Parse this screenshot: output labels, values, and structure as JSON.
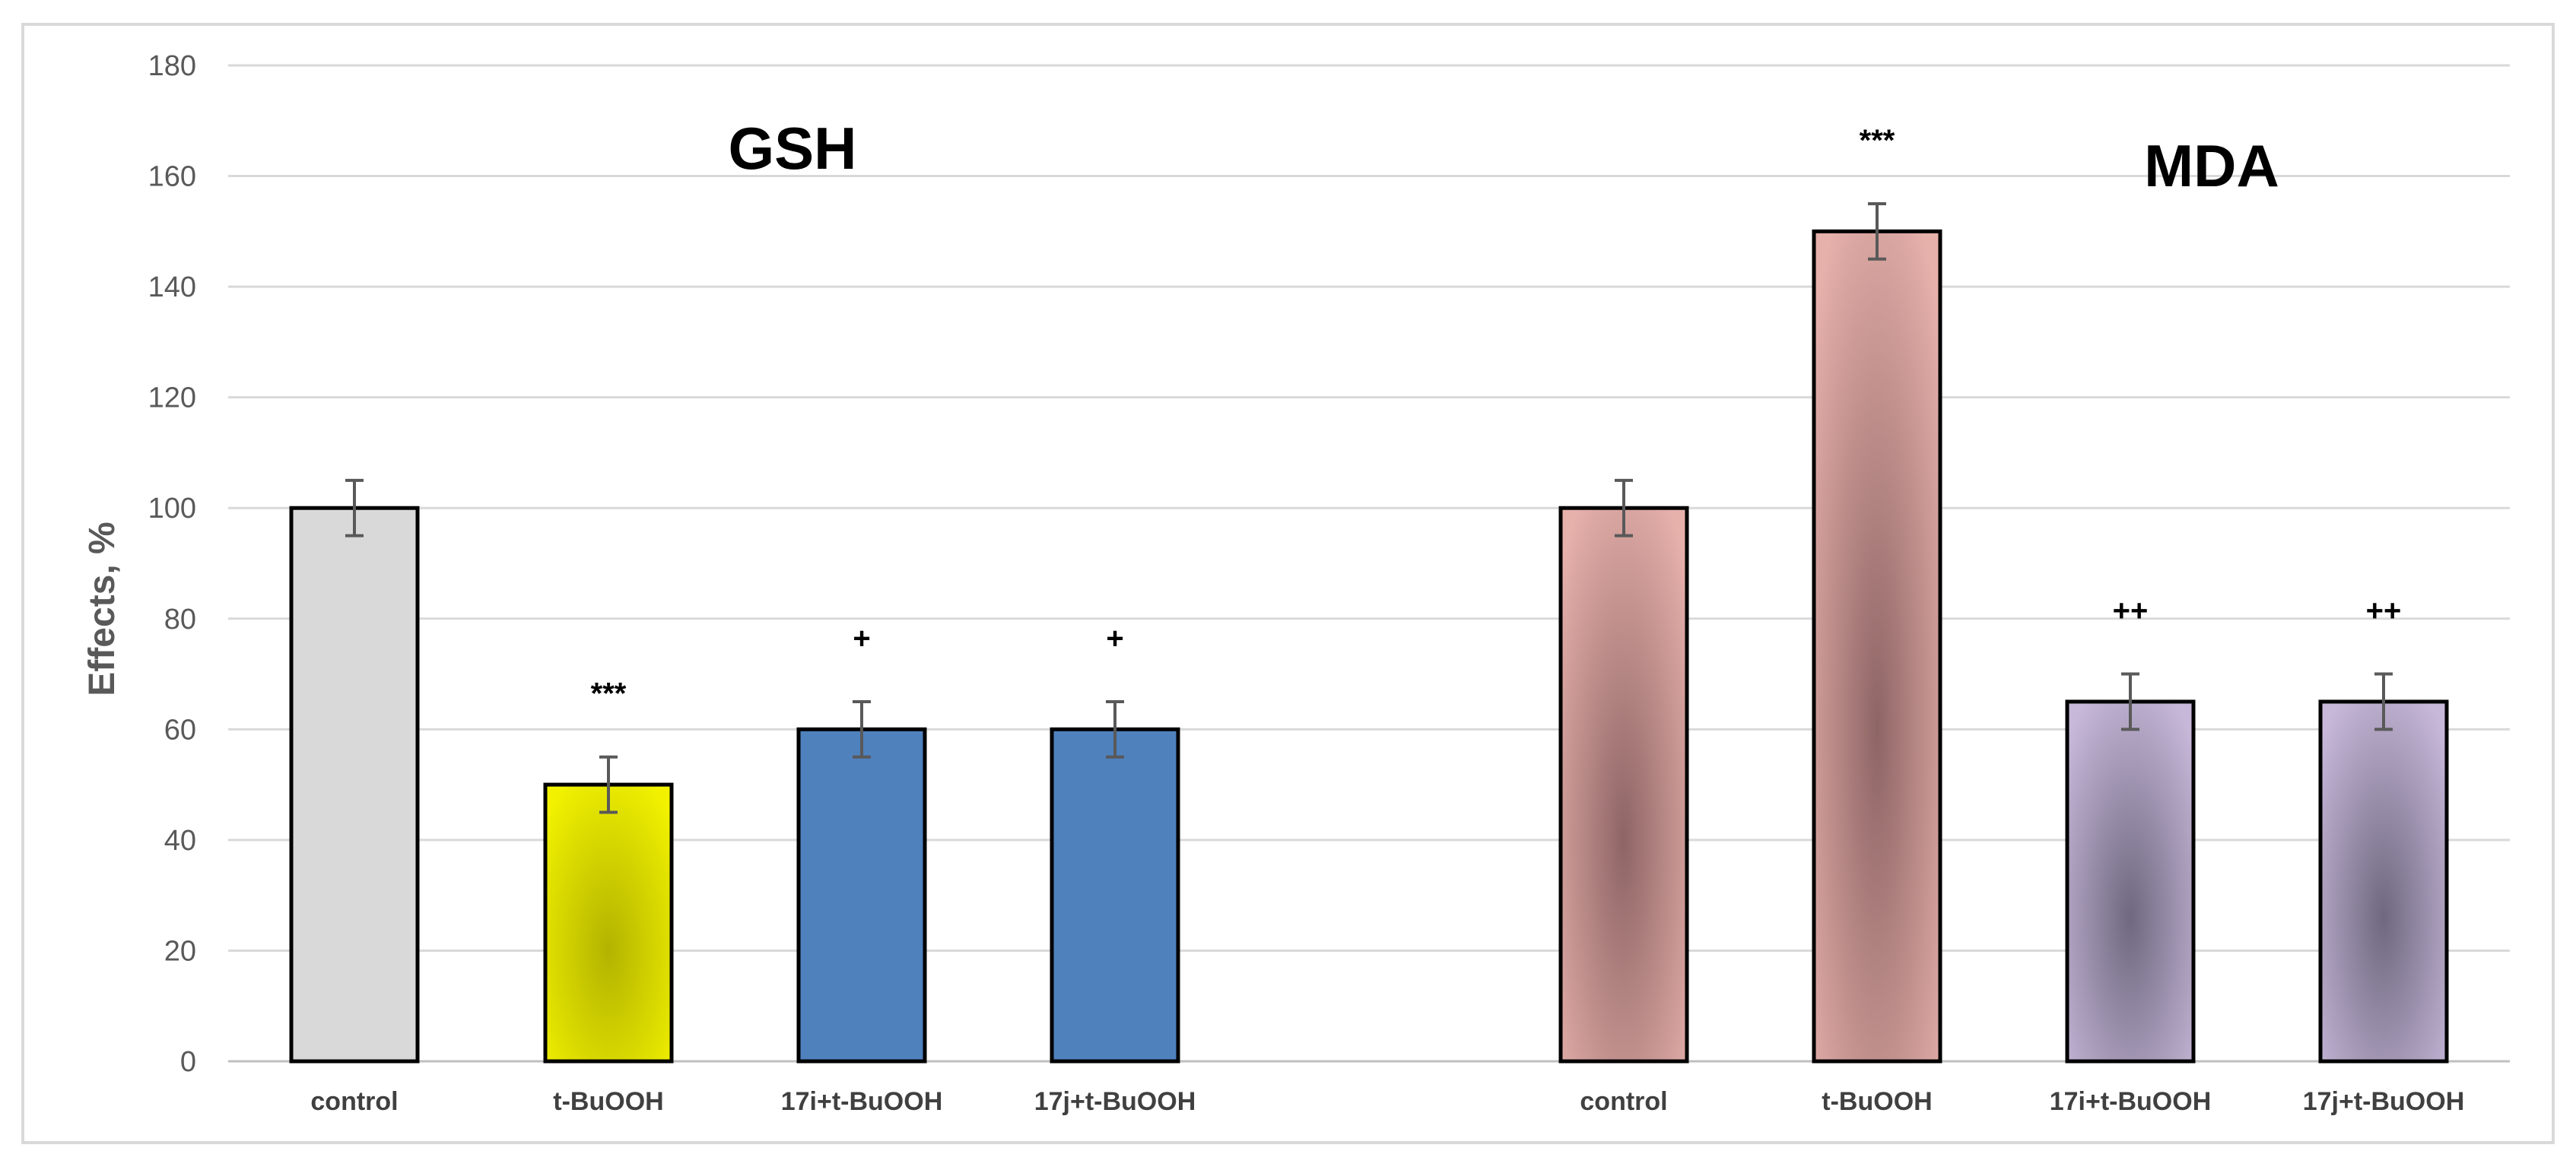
{
  "chart_data": {
    "type": "bar",
    "ylabel": "Effects, %",
    "xlabel": "",
    "ylim": [
      0,
      180
    ],
    "ytick_step": 20,
    "grid": true,
    "groups": [
      {
        "title": "GSH",
        "categories": [
          "control",
          "t-BuOOH",
          "17i+t-BuOOH",
          "17j+t-BuOOH"
        ],
        "values": [
          100,
          50,
          60,
          60
        ],
        "errors": [
          5,
          5,
          5,
          5
        ],
        "annotations": [
          "",
          "***",
          "+",
          "+"
        ],
        "colors": [
          "#d9d9d9",
          "#f2f200",
          "#4f81bd",
          "#4f81bd"
        ],
        "glow": [
          null,
          "#b3b300",
          null,
          null
        ]
      },
      {
        "title": "MDA",
        "categories": [
          "control",
          "t-BuOOH",
          "17i+t-BuOOH",
          "17j+t-BuOOH"
        ],
        "values": [
          100,
          150,
          65,
          65
        ],
        "errors": [
          5,
          5,
          5,
          5
        ],
        "annotations": [
          "",
          "***",
          "++",
          "++"
        ],
        "colors": [
          "#e6b0ab",
          "#e6b0ab",
          "#c7b8d9",
          "#c7b8d9"
        ],
        "glow": [
          "#8e6565",
          "#8e6565",
          "#6f6880",
          "#6f6880"
        ]
      }
    ]
  }
}
